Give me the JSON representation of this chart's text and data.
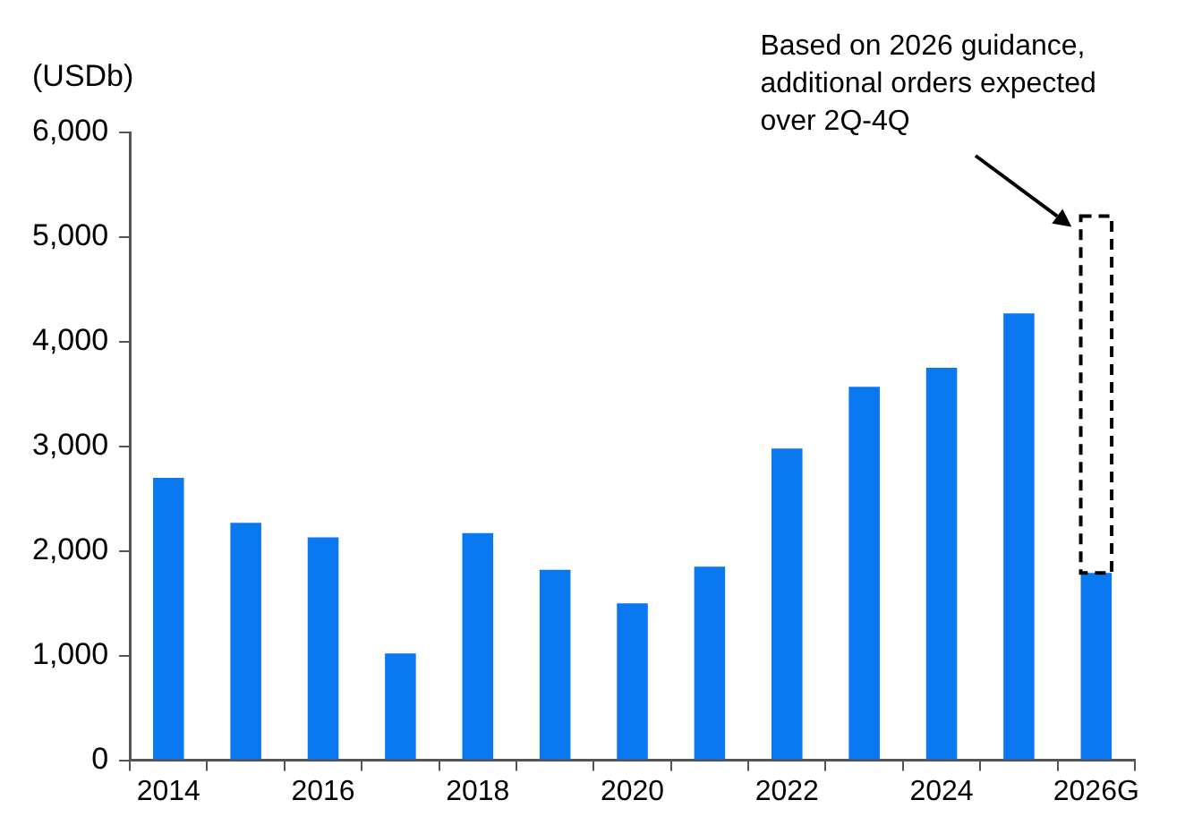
{
  "chart_data": {
    "type": "bar",
    "ylabel": "(USDb)",
    "stacked": true,
    "categories": [
      "2014",
      null,
      "2016",
      null,
      "2018",
      null,
      "2020",
      null,
      "2022",
      null,
      "2024",
      null,
      "2026G"
    ],
    "series": [
      {
        "color": "#0a78f0",
        "values": [
          2700,
          2270,
          2130,
          1020,
          2170,
          1820,
          1500,
          1850,
          2980,
          3570,
          3750,
          4270,
          1790
        ]
      },
      {
        "color": "#000000",
        "line_style": "dashed",
        "values": [
          null,
          null,
          null,
          null,
          null,
          null,
          null,
          null,
          null,
          null,
          null,
          null,
          3410
        ]
      }
    ],
    "ylim": [
      0,
      6000
    ],
    "yticks": [
      0,
      {
        "value": 1000,
        "label": "1,000"
      },
      {
        "value": 2000,
        "label": "2,000"
      },
      {
        "value": 3000,
        "label": "3,000"
      },
      {
        "value": 4000,
        "label": "4,000"
      },
      {
        "value": 5000,
        "label": "5,000"
      },
      {
        "value": 6000,
        "label": "6,000"
      }
    ],
    "annotations": [
      {
        "text": "Based on 2026 guidance,\nadditional orders expected\nover 2Q-4Q",
        "x": "2026G",
        "y": 5200
      }
    ],
    "grid": false,
    "legend": false
  }
}
